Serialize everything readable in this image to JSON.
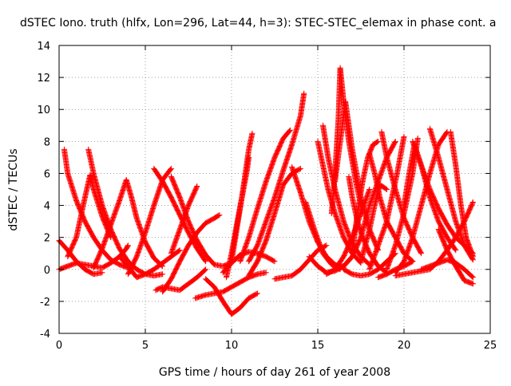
{
  "chart_data": {
    "type": "scatter",
    "title": "dSTEC Iono. truth (hlfx, Lon=296, Lat=44, h=3): STEC-STEC_elemax in phase cont. a",
    "xlabel": "GPS time / hours of day 261 of year 2008",
    "ylabel": "dSTEC  / TECUs",
    "xlim": [
      0,
      25
    ],
    "ylim": [
      -4,
      14
    ],
    "x_ticks": [
      0,
      5,
      10,
      15,
      20,
      25
    ],
    "y_ticks": [
      -4,
      -2,
      0,
      2,
      4,
      6,
      8,
      10,
      12,
      14
    ],
    "grid": true,
    "legend": "none",
    "marker": "+",
    "color": "#ff0000",
    "series": [
      {
        "x": [
          0.0,
          0.5,
          1.0,
          1.5,
          2.0,
          2.5
        ],
        "y": [
          1.8,
          1.2,
          0.5,
          0.0,
          -0.3,
          -0.2
        ]
      },
      {
        "x": [
          0.0,
          0.5,
          1.0,
          1.5,
          2.0,
          2.5,
          3.0,
          3.5,
          3.9,
          4.0
        ],
        "y": [
          0.0,
          0.2,
          0.4,
          0.3,
          0.2,
          0.1,
          0.4,
          0.8,
          1.3,
          1.5
        ]
      },
      {
        "x": [
          0.3,
          0.5,
          1.0,
          1.5,
          2.0,
          2.5,
          3.0,
          3.5,
          4.0
        ],
        "y": [
          7.5,
          6.0,
          4.3,
          3.0,
          2.0,
          1.2,
          0.6,
          0.3,
          0.1
        ]
      },
      {
        "x": [
          0.5,
          1.0,
          1.5,
          1.8,
          2.0,
          2.5,
          3.0
        ],
        "y": [
          0.8,
          2.0,
          4.5,
          5.9,
          5.0,
          3.3,
          2.0
        ]
      },
      {
        "x": [
          1.7,
          2.0,
          2.5,
          3.0,
          3.5,
          4.0,
          4.5,
          5.0,
          5.5,
          6.0
        ],
        "y": [
          7.5,
          6.0,
          4.0,
          2.5,
          1.3,
          0.5,
          0.0,
          -0.3,
          -0.4,
          -0.3
        ]
      },
      {
        "x": [
          2.0,
          2.5,
          3.0,
          3.5,
          3.9,
          4.2,
          4.5,
          5.0,
          5.5,
          6.0
        ],
        "y": [
          0.1,
          1.3,
          2.8,
          4.3,
          5.6,
          4.5,
          3.2,
          1.7,
          0.7,
          0.2
        ]
      },
      {
        "x": [
          3.5,
          4.0,
          4.5,
          5.0,
          5.5,
          6.0,
          6.5,
          7.0
        ],
        "y": [
          0.8,
          0.2,
          -0.5,
          -0.3,
          0.0,
          0.4,
          0.8,
          1.2
        ]
      },
      {
        "x": [
          4.0,
          4.5,
          5.0,
          5.5,
          6.0,
          6.5
        ],
        "y": [
          -0.3,
          0.8,
          2.3,
          4.0,
          5.6,
          6.3
        ]
      },
      {
        "x": [
          5.5,
          6.0,
          6.5,
          7.0,
          7.5,
          8.0,
          8.5
        ],
        "y": [
          6.3,
          5.5,
          4.5,
          3.4,
          2.3,
          1.3,
          0.5
        ]
      },
      {
        "x": [
          5.6,
          6.0,
          6.5,
          7.0,
          7.5,
          8.0,
          8.5
        ],
        "y": [
          -1.3,
          -1.1,
          -1.2,
          -1.3,
          -0.9,
          -0.5,
          0.0
        ]
      },
      {
        "x": [
          6.5,
          7.0,
          7.5,
          8.0,
          8.5,
          9.0,
          9.5,
          10.0,
          10.5
        ],
        "y": [
          5.8,
          4.5,
          3.0,
          1.8,
          0.9,
          0.3,
          0.2,
          0.4,
          0.9
        ]
      },
      {
        "x": [
          6.0,
          6.5,
          7.0,
          7.5,
          8.0,
          8.5,
          9.0,
          9.3
        ],
        "y": [
          -1.4,
          -0.6,
          0.5,
          1.5,
          2.3,
          2.9,
          3.2,
          3.4
        ]
      },
      {
        "x": [
          6.5,
          7.0,
          7.5,
          8.0
        ],
        "y": [
          1.0,
          2.5,
          4.0,
          5.2
        ]
      },
      {
        "x": [
          7.9,
          8.5,
          9.0,
          9.5,
          10.0,
          10.5,
          11.0,
          11.5,
          12.0
        ],
        "y": [
          -1.8,
          -1.6,
          -1.5,
          -1.4,
          -1.1,
          -0.8,
          -0.5,
          -0.3,
          -0.2
        ]
      },
      {
        "x": [
          8.5,
          9.0,
          9.5,
          10.0,
          10.5,
          11.0,
          11.5
        ],
        "y": [
          -0.6,
          -1.1,
          -2.0,
          -2.8,
          -2.4,
          -1.8,
          -1.5
        ]
      },
      {
        "x": [
          9.5,
          10.0,
          10.5,
          11.0,
          11.5,
          12.0,
          12.5
        ],
        "y": [
          -0.2,
          0.4,
          0.9,
          1.1,
          1.0,
          0.8,
          0.5
        ]
      },
      {
        "x": [
          10.0,
          10.3,
          10.6,
          10.8,
          11.0,
          11.2
        ],
        "y": [
          0.5,
          2.5,
          4.5,
          6.0,
          7.5,
          8.5
        ]
      },
      {
        "x": [
          9.7,
          10.0,
          10.3,
          10.6,
          10.9,
          11.0
        ],
        "y": [
          -0.5,
          1.0,
          2.8,
          4.5,
          6.2,
          7.0
        ]
      },
      {
        "x": [
          10.5,
          11.0,
          11.5,
          12.0,
          12.5,
          13.0,
          13.4
        ],
        "y": [
          0.5,
          2.0,
          3.8,
          5.5,
          7.0,
          8.2,
          8.7
        ]
      },
      {
        "x": [
          11.0,
          11.5,
          12.0,
          12.5,
          13.0,
          13.5,
          14.0
        ],
        "y": [
          -0.4,
          0.5,
          1.8,
          3.5,
          5.3,
          6.0,
          6.3
        ]
      },
      {
        "x": [
          11.0,
          11.5,
          12.0,
          12.5,
          13.0,
          13.5,
          14.0,
          14.2
        ],
        "y": [
          0.5,
          1.5,
          3.0,
          4.5,
          6.2,
          7.8,
          9.6,
          11.0
        ]
      },
      {
        "x": [
          12.5,
          13.0,
          13.5,
          14.0,
          14.5,
          15.0,
          15.5
        ],
        "y": [
          -0.6,
          -0.5,
          -0.4,
          0.0,
          0.6,
          1.2,
          1.5
        ]
      },
      {
        "x": [
          13.5,
          14.0,
          14.5,
          15.0,
          15.5,
          16.0,
          16.5
        ],
        "y": [
          6.4,
          4.8,
          3.0,
          1.7,
          0.8,
          0.3,
          0.1
        ]
      },
      {
        "x": [
          14.3,
          14.8,
          15.3,
          15.8,
          16.3
        ],
        "y": [
          4.2,
          2.5,
          1.0,
          0.3,
          0.0
        ]
      },
      {
        "x": [
          15.0,
          15.3,
          15.6,
          16.0,
          16.5,
          17.0,
          17.5
        ],
        "y": [
          8.0,
          6.5,
          5.0,
          3.5,
          2.0,
          1.0,
          0.4
        ]
      },
      {
        "x": [
          15.3,
          15.6,
          16.0,
          16.5,
          17.0,
          17.5,
          18.0
        ],
        "y": [
          9.0,
          7.0,
          5.0,
          3.0,
          1.6,
          0.8,
          0.3
        ]
      },
      {
        "x": [
          15.8,
          16.0,
          16.2,
          16.3,
          16.5,
          16.8,
          17.2,
          17.6
        ],
        "y": [
          3.5,
          6.0,
          9.5,
          12.6,
          10.5,
          8.0,
          5.5,
          3.5
        ]
      },
      {
        "x": [
          16.0,
          16.3,
          16.6,
          17.0,
          17.5,
          18.0,
          18.5
        ],
        "y": [
          5.5,
          8.0,
          10.5,
          7.5,
          4.5,
          2.5,
          1.2
        ]
      },
      {
        "x": [
          16.0,
          16.5,
          17.0,
          17.5,
          18.0,
          18.5,
          19.0,
          19.5
        ],
        "y": [
          0.2,
          0.2,
          0.8,
          2.0,
          4.0,
          5.5,
          7.0,
          8.0
        ]
      },
      {
        "x": [
          16.8,
          17.0,
          17.3,
          17.6,
          18.0,
          18.5,
          19.0
        ],
        "y": [
          5.8,
          4.5,
          3.0,
          2.0,
          1.0,
          0.2,
          -0.2
        ]
      },
      {
        "x": [
          17.0,
          17.3,
          17.6,
          17.9,
          18.2,
          18.5
        ],
        "y": [
          1.0,
          3.5,
          5.5,
          7.0,
          7.8,
          8.0
        ]
      },
      {
        "x": [
          17.5,
          18.0,
          18.3,
          18.6,
          19.0
        ],
        "y": [
          0.5,
          2.5,
          4.0,
          5.3,
          5.0
        ]
      },
      {
        "x": [
          18.0,
          18.3,
          18.6,
          19.0,
          19.5,
          20.0,
          20.5
        ],
        "y": [
          7.2,
          6.0,
          4.5,
          3.0,
          2.0,
          1.0,
          0.5
        ]
      },
      {
        "x": [
          18.0,
          18.5,
          19.0,
          19.3,
          19.6,
          20.0
        ],
        "y": [
          0.0,
          1.5,
          3.0,
          4.5,
          6.0,
          8.3
        ]
      },
      {
        "x": [
          18.7,
          19.0,
          19.5,
          20.0,
          20.5,
          21.0
        ],
        "y": [
          8.6,
          7.0,
          5.0,
          3.2,
          2.0,
          1.0
        ]
      },
      {
        "x": [
          19.0,
          19.5,
          20.0,
          20.5,
          20.8
        ],
        "y": [
          0.0,
          1.5,
          3.5,
          6.0,
          8.2
        ]
      },
      {
        "x": [
          19.5,
          20.0,
          20.5,
          21.0,
          21.5,
          22.0,
          22.5
        ],
        "y": [
          -0.2,
          0.5,
          2.0,
          4.0,
          6.0,
          7.8,
          8.6
        ]
      },
      {
        "x": [
          20.0,
          20.3,
          20.6,
          21.0,
          21.5,
          22.0,
          22.5,
          23.0
        ],
        "y": [
          4.0,
          6.0,
          7.8,
          6.5,
          4.5,
          3.0,
          2.0,
          1.2
        ]
      },
      {
        "x": [
          20.5,
          21.0,
          21.5,
          22.0,
          22.5,
          23.0,
          23.5,
          24.0
        ],
        "y": [
          8.0,
          6.5,
          5.0,
          3.8,
          2.8,
          2.0,
          1.5,
          1.0
        ]
      },
      {
        "x": [
          21.5,
          22.0,
          22.5,
          23.0,
          23.5,
          24.0
        ],
        "y": [
          8.8,
          7.0,
          5.0,
          3.0,
          1.5,
          0.6
        ]
      },
      {
        "x": [
          22.7,
          23.0,
          23.3,
          23.6,
          24.0
        ],
        "y": [
          8.6,
          6.5,
          4.0,
          2.0,
          0.8
        ]
      },
      {
        "x": [
          21.0,
          21.5,
          22.0,
          22.5,
          23.0,
          23.5,
          24.0
        ],
        "y": [
          0.0,
          0.2,
          0.4,
          0.6,
          0.4,
          0.0,
          -0.5
        ]
      },
      {
        "x": [
          19.5,
          20.5,
          21.5,
          22.0,
          22.5,
          23.0,
          23.5,
          24.0
        ],
        "y": [
          -0.4,
          -0.2,
          0.0,
          0.5,
          1.2,
          2.0,
          3.0,
          4.2
        ]
      },
      {
        "x": [
          22.0,
          22.5,
          23.0,
          23.5,
          24.0
        ],
        "y": [
          2.5,
          1.2,
          0.2,
          -0.7,
          -0.9
        ]
      },
      {
        "x": [
          18.5,
          19.0,
          19.5,
          20.0,
          20.5
        ],
        "y": [
          -0.5,
          -0.3,
          0.0,
          0.2,
          0.5
        ]
      },
      {
        "x": [
          14.5,
          15.0,
          15.5,
          16.0,
          16.5,
          17.0
        ],
        "y": [
          0.8,
          0.2,
          -0.2,
          -0.1,
          0.2,
          0.8
        ]
      },
      {
        "x": [
          15.5,
          16.0,
          16.5,
          17.0,
          17.5,
          18.0
        ],
        "y": [
          -0.3,
          0.0,
          0.8,
          2.0,
          3.5,
          5.0
        ]
      },
      {
        "x": [
          16.5,
          17.0,
          17.5,
          18.0,
          18.5,
          19.0,
          19.5
        ],
        "y": [
          0.0,
          -0.3,
          -0.4,
          -0.3,
          0.0,
          0.5,
          1.0
        ]
      }
    ]
  }
}
